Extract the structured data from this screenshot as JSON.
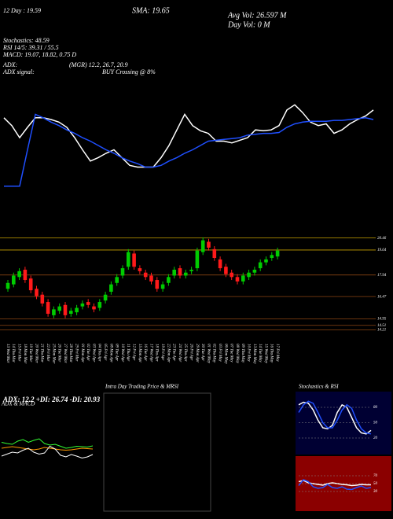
{
  "header": {
    "left": [
      "12 Day : 19.59",
      "Stochastics: 48.59",
      "RSI 14/5: 39.31 / 55.5",
      "MACD: 19.07, 18.82, 0.75 D",
      "ADX:",
      "ADX signal:"
    ],
    "middle": [
      "SMA: 19.65",
      "(MGR) 12.2, 26.7, 20.9",
      "BUY Crossing @ 8%"
    ],
    "right": [
      "Avg Vol: 26.597 M",
      "Day Vol: 0  M"
    ]
  },
  "chart_data": [
    {
      "type": "line",
      "ylim": [
        0,
        100
      ],
      "series": [
        {
          "color": "#ffffff",
          "values": [
            82,
            73,
            59,
            71,
            82,
            82,
            80,
            77,
            71,
            59,
            45,
            32,
            36,
            41,
            45,
            36,
            27,
            25,
            25,
            25,
            36,
            50,
            68,
            86,
            73,
            67,
            64,
            55,
            55,
            53,
            56,
            59,
            68,
            67,
            68,
            73,
            91,
            97,
            88,
            77,
            73,
            75,
            64,
            68,
            75,
            80,
            84,
            91
          ]
        },
        {
          "color": "#1f4fff",
          "values": [
            3,
            3,
            3,
            45,
            86,
            82,
            77,
            73,
            68,
            64,
            59,
            55,
            50,
            45,
            41,
            36,
            32,
            29,
            25,
            25,
            27,
            32,
            36,
            41,
            45,
            50,
            55,
            56,
            57,
            58,
            59,
            62,
            63,
            64,
            64,
            65,
            71,
            75,
            77,
            78,
            78,
            78,
            79,
            79,
            80,
            81,
            82,
            80
          ]
        }
      ]
    },
    {
      "type": "candlestick",
      "categories": [
        "13 Wed Mar",
        "14 Thu Mar",
        "15 Fri Mar",
        "18 Mon Mar",
        "19 Tue Mar",
        "20 Wed Mar",
        "21 Thu Mar",
        "22 Fri Mar",
        "25 Mon Mar",
        "26 Tue Mar",
        "27 Wed Mar",
        "28 Thu Mar",
        "29 Fri Mar",
        "01 Mon Apr",
        "02 Tue Apr",
        "03 Wed Apr",
        "04 Thu Apr",
        "05 Fri Apr",
        "08 Mon Apr",
        "09 Tue Apr",
        "10 Wed Apr",
        "11 Thu Apr",
        "12 Fri Apr",
        "15 Mon Apr",
        "16 Tue Apr",
        "17 Wed Apr",
        "18 Thu Apr",
        "19 Fri Apr",
        "22 Mon Apr",
        "23 Tue Apr",
        "24 Wed Apr",
        "25 Thu Apr",
        "26 Fri Apr",
        "29 Mon Apr",
        "30 Tue Apr",
        "01 Wed May",
        "02 Thu May",
        "03 Fri May",
        "06 Mon May",
        "07 Tue May",
        "08 Wed May",
        "09 Thu May",
        "10 Fri May",
        "13 Mon May",
        "14 Tue May",
        "15 Wed May",
        "16 Thu May",
        "17 Fri May"
      ],
      "open": [
        17.0,
        17.3,
        17.8,
        18.3,
        17.7,
        17.0,
        16.6,
        16.1,
        15.2,
        15.5,
        15.9,
        15.3,
        15.4,
        15.8,
        16.1,
        15.8,
        15.7,
        16.2,
        16.8,
        17.4,
        17.9,
        18.5,
        19.4,
        18.4,
        18.1,
        17.9,
        17.6,
        17.0,
        17.4,
        17.9,
        18.4,
        17.9,
        18.2,
        18.4,
        19.5,
        20.2,
        19.7,
        19.0,
        18.5,
        18.1,
        17.8,
        17.5,
        17.8,
        18.1,
        18.4,
        18.8,
        19.1,
        19.2
      ],
      "high": [
        17.6,
        18.1,
        18.4,
        18.5,
        17.9,
        17.2,
        16.8,
        16.3,
        15.8,
        16.0,
        16.1,
        15.7,
        15.9,
        16.2,
        16.3,
        16.0,
        16.3,
        16.8,
        17.5,
        18.0,
        18.6,
        19.7,
        19.6,
        18.6,
        18.3,
        18.1,
        17.8,
        17.5,
        18.0,
        18.5,
        18.6,
        18.3,
        18.5,
        19.8,
        20.5,
        20.4,
        19.9,
        19.2,
        18.7,
        18.3,
        18.0,
        18.1,
        18.3,
        18.5,
        19.0,
        19.2,
        19.5,
        19.8
      ],
      "low": [
        16.8,
        17.1,
        17.6,
        17.4,
        16.7,
        16.3,
        15.8,
        15.1,
        15.0,
        15.3,
        15.0,
        15.1,
        15.2,
        15.6,
        15.7,
        15.4,
        15.5,
        16.0,
        16.6,
        17.2,
        17.7,
        18.3,
        18.3,
        18.0,
        17.6,
        17.3,
        16.8,
        16.8,
        17.2,
        17.7,
        17.7,
        17.7,
        18.0,
        18.2,
        19.3,
        19.6,
        18.9,
        18.2,
        17.8,
        17.6,
        17.3,
        17.3,
        17.6,
        17.9,
        18.2,
        18.6,
        18.9,
        19.0
      ],
      "close": [
        17.4,
        17.9,
        18.2,
        17.6,
        16.9,
        16.5,
        16.0,
        15.3,
        15.6,
        15.8,
        15.2,
        15.5,
        15.7,
        16.0,
        15.9,
        15.6,
        16.1,
        16.6,
        17.3,
        17.8,
        18.4,
        19.5,
        18.5,
        18.2,
        17.8,
        17.5,
        17.0,
        17.3,
        17.8,
        18.3,
        17.9,
        18.1,
        18.3,
        19.6,
        20.3,
        19.8,
        19.1,
        18.4,
        18.0,
        17.8,
        17.5,
        17.9,
        18.1,
        18.3,
        18.8,
        19.0,
        19.3,
        19.6
      ],
      "up_color": "#00cc00",
      "down_color": "#ff1a1a",
      "ylim": [
        13.64,
        20.6
      ],
      "yticks": [
        20.46,
        19.64,
        17.94,
        16.47,
        14.95,
        14.51,
        14.21
      ]
    },
    {
      "type": "line",
      "title": "ADX  & MACD",
      "subtitle": "ADX: 12.2  +DI: 26.74  -DI: 20.93",
      "ylim": [
        0,
        100
      ],
      "series": [
        {
          "color": "#33ff33",
          "values": [
            55,
            52,
            50,
            58,
            62,
            55,
            60,
            64,
            52,
            48,
            50,
            45,
            40,
            42,
            45,
            44,
            43,
            46
          ]
        },
        {
          "color": "#ff9900",
          "values": [
            40,
            42,
            44,
            42,
            40,
            38,
            36,
            38,
            42,
            40,
            38,
            36,
            35,
            36,
            38,
            40,
            39,
            38
          ]
        },
        {
          "color": "#ffffff",
          "values": [
            20,
            25,
            30,
            28,
            35,
            40,
            30,
            25,
            28,
            45,
            38,
            22,
            18,
            24,
            20,
            15,
            18,
            24
          ]
        }
      ]
    },
    {
      "type": "line",
      "title": "Intra Day Trading Price  & MRSI",
      "ylim": [
        0,
        100
      ],
      "series": []
    },
    {
      "type": "line",
      "title": "Stochastics & RSI",
      "ylim": [
        0,
        100
      ],
      "yticks": [
        80,
        50,
        20
      ],
      "series": [
        {
          "color": "#ffffff",
          "values": [
            85,
            90,
            88,
            75,
            55,
            40,
            38,
            45,
            70,
            85,
            80,
            60,
            40,
            30,
            28,
            35
          ]
        },
        {
          "color": "#1f4fff",
          "values": [
            70,
            85,
            92,
            88,
            70,
            50,
            40,
            40,
            55,
            75,
            85,
            78,
            55,
            38,
            30,
            28
          ]
        }
      ]
    },
    {
      "type": "line",
      "ylim": [
        0,
        100
      ],
      "yticks": [
        70,
        50,
        30
      ],
      "series": [
        {
          "color": "#ffffff",
          "values": [
            55,
            58,
            52,
            50,
            48,
            46,
            50,
            52,
            50,
            48,
            47,
            45,
            46,
            48,
            47,
            47
          ]
        },
        {
          "color": "#1f4fff",
          "values": [
            45,
            60,
            55,
            42,
            38,
            40,
            48,
            40,
            38,
            42,
            36,
            35,
            40,
            44,
            38,
            40
          ]
        }
      ]
    }
  ]
}
